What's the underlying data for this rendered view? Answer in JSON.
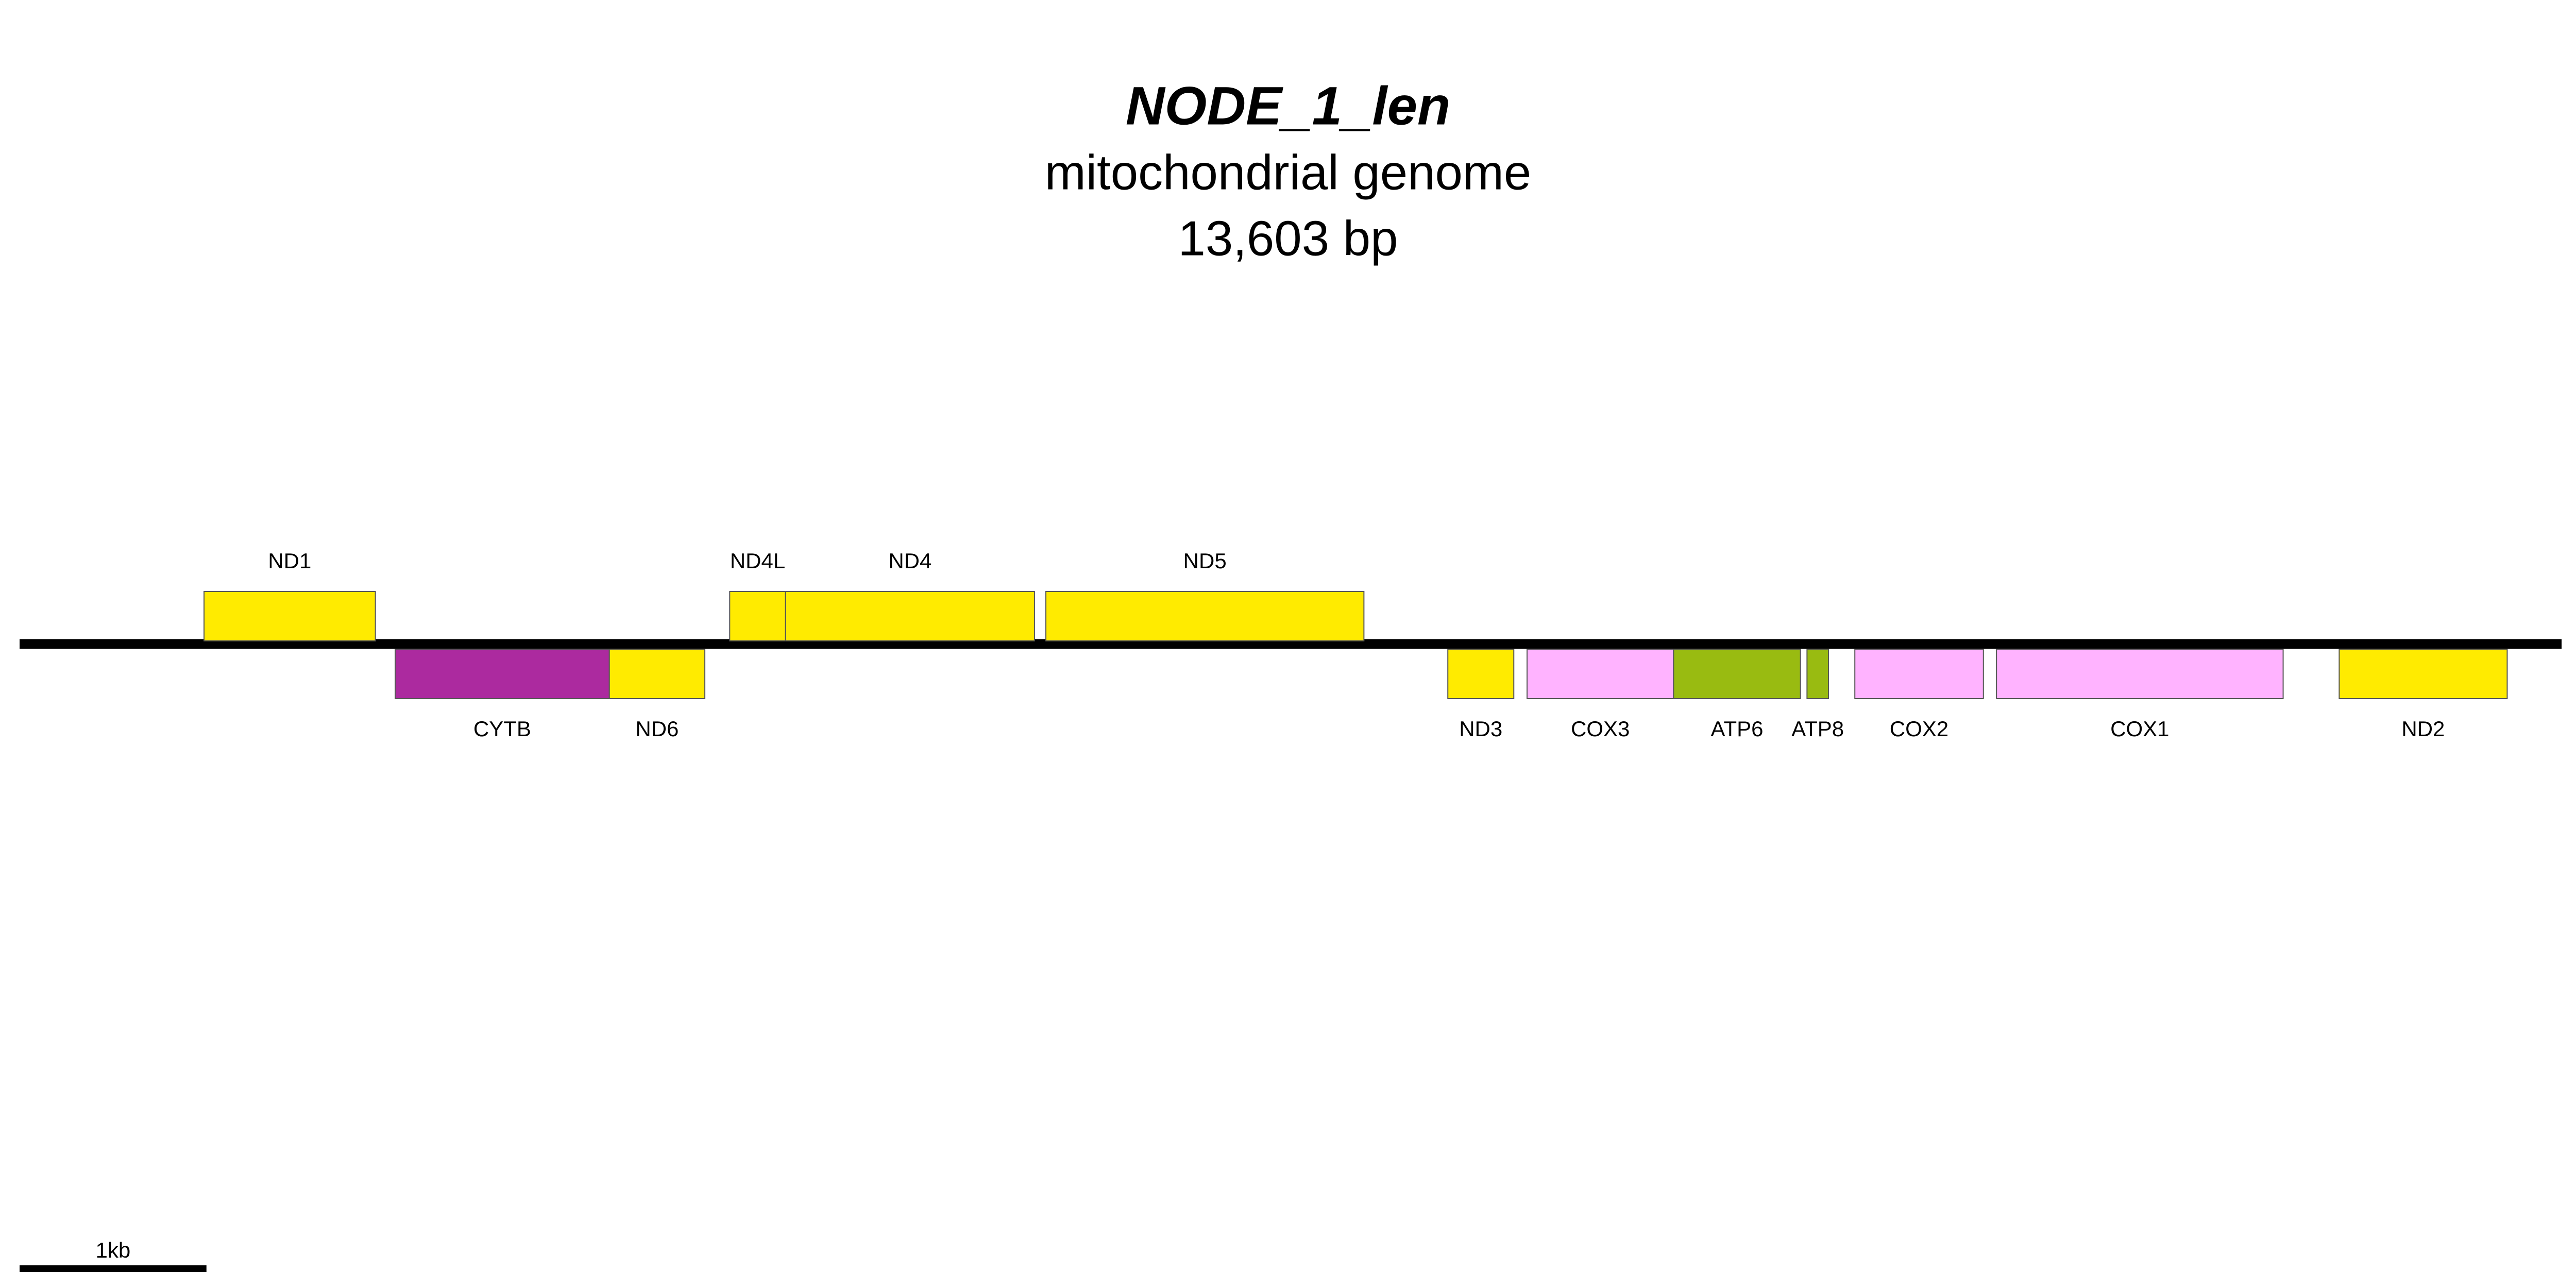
{
  "chart_data": {
    "type": "genome-map",
    "title": "NODE_1_len",
    "subtitle": "mitochondrial genome",
    "length": {
      "value": 13603,
      "label": "13,603 bp"
    },
    "scale_bar": {
      "value": 1000,
      "label": "1kb"
    },
    "genes": [
      {
        "name": "ND1",
        "start": 987,
        "end": 1904,
        "strand": "+",
        "color": "#ffeb00"
      },
      {
        "name": "CYTB",
        "start": 2010,
        "end": 3156,
        "strand": "-",
        "color": "#ac2a9f"
      },
      {
        "name": "ND6",
        "start": 3156,
        "end": 3667,
        "strand": "-",
        "color": "#ffeb00"
      },
      {
        "name": "ND4L",
        "start": 3800,
        "end": 4099,
        "strand": "+",
        "color": "#ffeb00"
      },
      {
        "name": "ND4",
        "start": 4099,
        "end": 5431,
        "strand": "+",
        "color": "#ffeb00"
      },
      {
        "name": "ND5",
        "start": 5492,
        "end": 7194,
        "strand": "+",
        "color": "#ffeb00"
      },
      {
        "name": "ND3",
        "start": 7643,
        "end": 7996,
        "strand": "-",
        "color": "#ffeb00"
      },
      {
        "name": "COX3",
        "start": 8067,
        "end": 8851,
        "strand": "-",
        "color": "#ffb3ff"
      },
      {
        "name": "ATP6",
        "start": 8851,
        "end": 9530,
        "strand": "-",
        "color": "#99bb11"
      },
      {
        "name": "ATP8",
        "start": 9565,
        "end": 9680,
        "strand": "-",
        "color": "#99bb11"
      },
      {
        "name": "COX2",
        "start": 9821,
        "end": 10509,
        "strand": "-",
        "color": "#ffb3ff"
      },
      {
        "name": "COX1",
        "start": 10579,
        "end": 12113,
        "strand": "-",
        "color": "#ffb3ff"
      },
      {
        "name": "ND2",
        "start": 12413,
        "end": 13312,
        "strand": "-",
        "color": "#ffeb00"
      }
    ]
  }
}
